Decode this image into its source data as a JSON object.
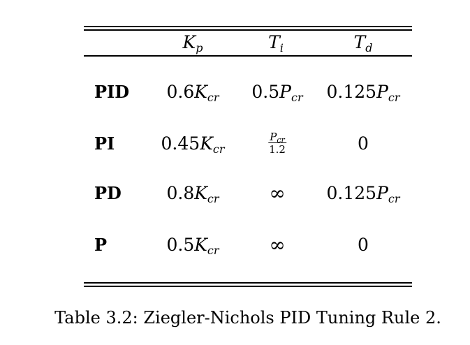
{
  "table": {
    "header": {
      "kp": {
        "base": "K",
        "sub": "p"
      },
      "ti": {
        "base": "T",
        "sub": "i"
      },
      "td": {
        "base": "T",
        "sub": "d"
      }
    },
    "rows": [
      {
        "label": "PID",
        "kp": {
          "coef": "0.6",
          "base": "K",
          "sub": "cr"
        },
        "ti": {
          "coef": "0.5",
          "base": "P",
          "sub": "cr"
        },
        "td": {
          "coef": "0.125",
          "base": "P",
          "sub": "cr"
        }
      },
      {
        "label": "PI",
        "kp": {
          "coef": "0.45",
          "base": "K",
          "sub": "cr"
        },
        "ti": {
          "num_base": "P",
          "num_sub": "cr",
          "den": "1.2"
        },
        "td": "0"
      },
      {
        "label": "PD",
        "kp": {
          "coef": "0.8",
          "base": "K",
          "sub": "cr"
        },
        "ti": "∞",
        "td": {
          "coef": "0.125",
          "base": "P",
          "sub": "cr"
        }
      },
      {
        "label": "P",
        "kp": {
          "coef": "0.5",
          "base": "K",
          "sub": "cr"
        },
        "ti": "∞",
        "td": "0"
      }
    ]
  },
  "caption": "Table 3.2: Ziegler-Nichols PID Tuning Rule 2."
}
